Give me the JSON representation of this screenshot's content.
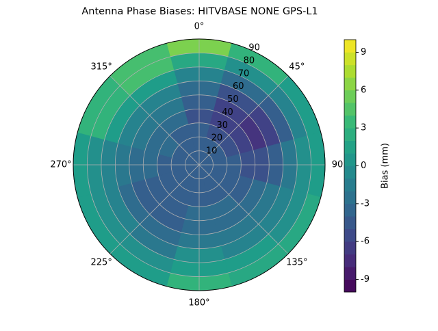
{
  "chart_data": {
    "type": "polar-contour",
    "title": "Antenna Phase Biases: HITVBASE        NONE GPS-L1",
    "azimuth": [
      0,
      30,
      60,
      90,
      120,
      150,
      180,
      210,
      240,
      270,
      300,
      330
    ],
    "zenith": [
      5,
      15,
      25,
      35,
      45,
      55,
      65,
      75,
      85
    ],
    "values": [
      [
        -4,
        -4,
        -4,
        -5,
        -4,
        -3,
        -1,
        2,
        6
      ],
      [
        -4,
        -4,
        -5,
        -6,
        -6,
        -5,
        -3,
        0,
        3
      ],
      [
        -4,
        -4,
        -5,
        -6,
        -7,
        -6,
        -4,
        -1,
        1
      ],
      [
        -4,
        -4,
        -4,
        -5,
        -5,
        -4,
        -2,
        0,
        1
      ],
      [
        -4,
        -4,
        -4,
        -4,
        -3,
        -2,
        -1,
        0,
        2
      ],
      [
        -4,
        -4,
        -4,
        -3,
        -3,
        -2,
        -1,
        1,
        2
      ],
      [
        -4,
        -4,
        -4,
        -3,
        -3,
        -2,
        0,
        1,
        3
      ],
      [
        -4,
        -4,
        -4,
        -4,
        -4,
        -3,
        -2,
        0,
        1
      ],
      [
        -4,
        -4,
        -4,
        -4,
        -4,
        -3,
        -1,
        0,
        1
      ],
      [
        -4,
        -4,
        -4,
        -3,
        -3,
        -2,
        -1,
        0,
        1
      ],
      [
        -4,
        -4,
        -3,
        -3,
        -2,
        -1,
        1,
        3,
        3
      ],
      [
        -4,
        -4,
        -4,
        -3,
        -2,
        -1,
        1,
        4,
        4
      ]
    ],
    "rlim": [
      0,
      90
    ],
    "rticks": [
      10,
      20,
      30,
      40,
      50,
      60,
      70,
      80,
      90
    ],
    "thetaticks": [
      {
        "value": 0,
        "label": "0°"
      },
      {
        "value": 45,
        "label": "45°"
      },
      {
        "value": 90,
        "label": "90"
      },
      {
        "value": 135,
        "label": "135°"
      },
      {
        "value": 180,
        "label": "180°"
      },
      {
        "value": 225,
        "label": "225°"
      },
      {
        "value": 270,
        "label": "270°"
      },
      {
        "value": 315,
        "label": "315°"
      }
    ],
    "grid": true,
    "colormap": [
      "#440154",
      "#482878",
      "#3e4989",
      "#31688e",
      "#26828e",
      "#1f9e89",
      "#35b779",
      "#6ece58",
      "#b5de2b",
      "#fde725"
    ],
    "colorbar": {
      "label": "Bias (mm)",
      "clim": [
        -10,
        10
      ],
      "ticks": [
        -9,
        -6,
        -3,
        0,
        3,
        6,
        9
      ],
      "levels": [
        -10,
        -9,
        -8,
        -7,
        -6,
        -5,
        -4,
        -3,
        -2,
        -1,
        0,
        1,
        2,
        3,
        4,
        5,
        6,
        7,
        8,
        9,
        10
      ]
    }
  }
}
